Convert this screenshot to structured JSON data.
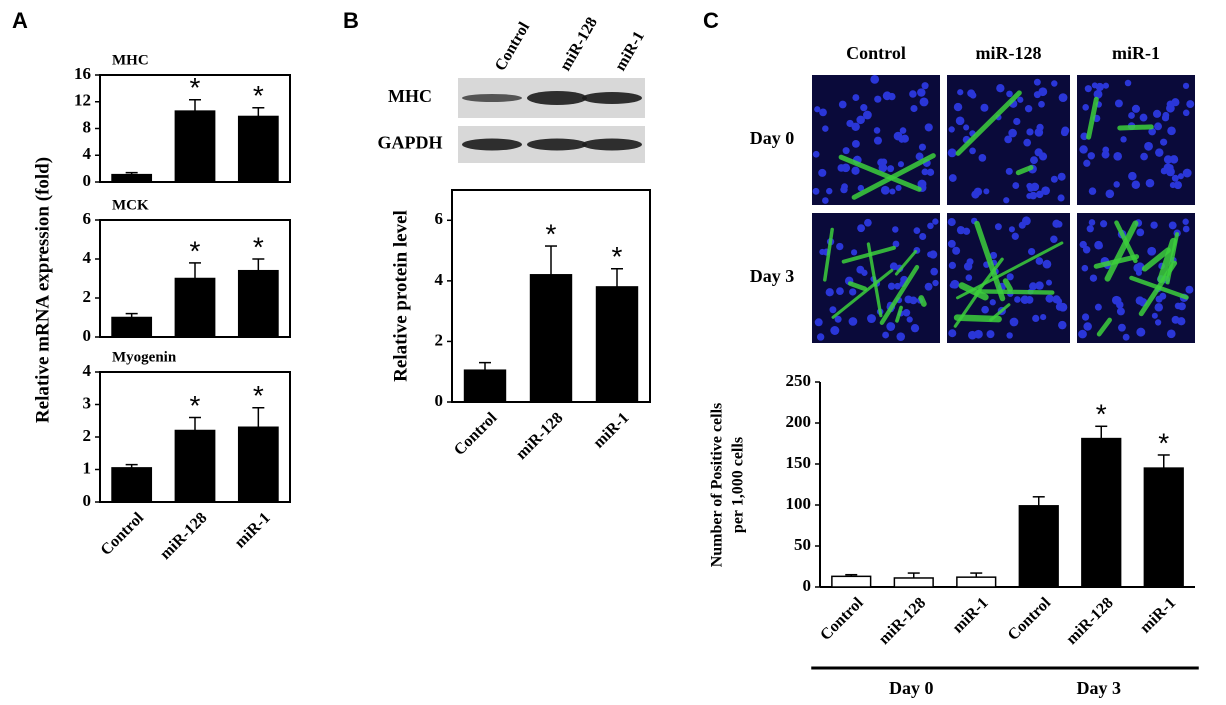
{
  "chart_data": [
    {
      "type": "bar",
      "panel": "A",
      "ylabel": "Relative mRNA expression (fold)",
      "categories": [
        "Control",
        "miR-128",
        "miR-1"
      ],
      "color": "#000000",
      "subplots": [
        {
          "title": "MHC",
          "values": [
            1.1,
            10.6,
            9.8
          ],
          "errors": [
            0.3,
            1.7,
            1.3
          ],
          "significance": [
            null,
            "*",
            "*"
          ],
          "ylim": [
            0,
            16
          ],
          "yticks": [
            0,
            4,
            8,
            12,
            16
          ]
        },
        {
          "title": "MCK",
          "values": [
            1.0,
            3.0,
            3.4
          ],
          "errors": [
            0.2,
            0.8,
            0.6
          ],
          "significance": [
            null,
            "*",
            "*"
          ],
          "ylim": [
            0,
            6
          ],
          "yticks": [
            0,
            2,
            4,
            6
          ]
        },
        {
          "title": "Myogenin",
          "values": [
            1.05,
            2.2,
            2.3
          ],
          "errors": [
            0.1,
            0.4,
            0.6
          ],
          "significance": [
            null,
            "*",
            "*"
          ],
          "ylim": [
            0,
            4
          ],
          "yticks": [
            0,
            1,
            2,
            3,
            4
          ]
        }
      ]
    },
    {
      "type": "bar",
      "panel": "B",
      "blot": {
        "lanes": [
          "Control",
          "miR-128",
          "miR-1"
        ],
        "rows": [
          "MHC",
          "GAPDH"
        ]
      },
      "ylabel": "Relative protein level",
      "categories": [
        "Control",
        "miR-128",
        "miR-1"
      ],
      "color": "#000000",
      "values": [
        1.05,
        4.2,
        3.8
      ],
      "errors": [
        0.25,
        0.95,
        0.6
      ],
      "significance": [
        null,
        "*",
        "*"
      ],
      "ylim": [
        0,
        7
      ],
      "yticks": [
        0,
        2,
        4,
        6
      ]
    },
    {
      "type": "bar",
      "panel": "C",
      "images": {
        "columns": [
          "Control",
          "miR-128",
          "miR-1"
        ],
        "rows": [
          "Day 0",
          "Day 3"
        ]
      },
      "ylabel": [
        "Number of Positive cells",
        "per 1,000 cells"
      ],
      "categories": [
        "Control",
        "miR-128",
        "miR-1",
        "Control",
        "miR-128",
        "miR-1"
      ],
      "groups": [
        "Day 0",
        "Day 3"
      ],
      "values": [
        13,
        11,
        12,
        99,
        181,
        145
      ],
      "errors": [
        2,
        6,
        5,
        11,
        15,
        16
      ],
      "significance": [
        null,
        null,
        null,
        null,
        "*",
        "*"
      ],
      "colors": [
        "#ffffff",
        "#ffffff",
        "#ffffff",
        "#000000",
        "#000000",
        "#000000"
      ],
      "ylim": [
        0,
        250
      ],
      "yticks": [
        0,
        50,
        100,
        150,
        200,
        250
      ]
    }
  ]
}
